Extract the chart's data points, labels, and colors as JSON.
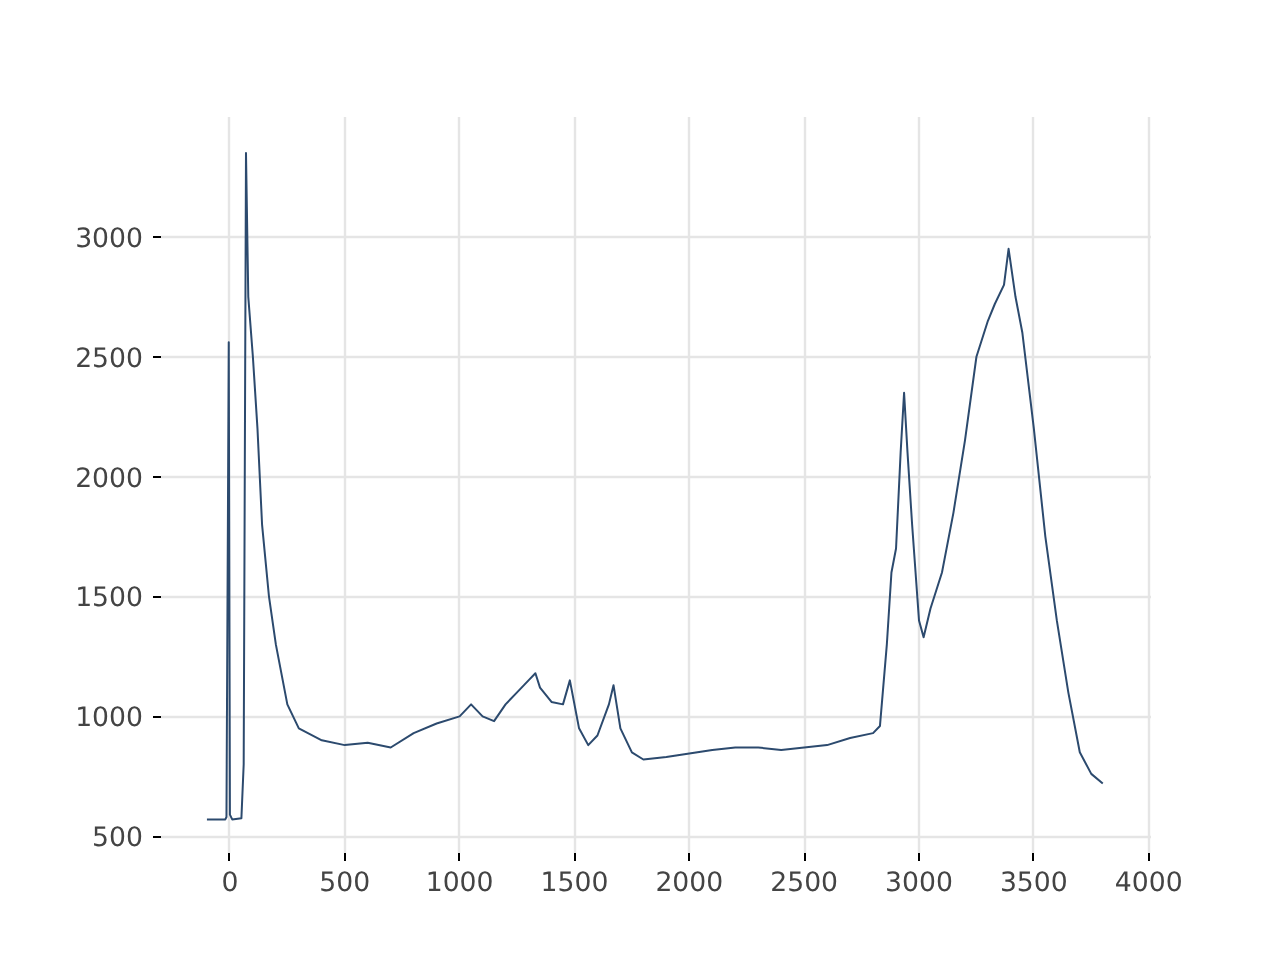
{
  "chart_data": {
    "type": "line",
    "x": [
      -100,
      -20,
      -15,
      -5,
      0,
      10,
      50,
      60,
      70,
      80,
      100,
      120,
      140,
      150,
      170,
      200,
      250,
      300,
      400,
      500,
      600,
      700,
      800,
      900,
      1000,
      1050,
      1100,
      1150,
      1200,
      1250,
      1300,
      1330,
      1350,
      1400,
      1450,
      1480,
      1520,
      1560,
      1600,
      1650,
      1670,
      1700,
      1750,
      1800,
      1900,
      2000,
      2100,
      2200,
      2300,
      2400,
      2500,
      2600,
      2700,
      2800,
      2830,
      2860,
      2880,
      2900,
      2920,
      2935,
      2950,
      2970,
      3000,
      3020,
      3050,
      3100,
      3150,
      3200,
      3250,
      3300,
      3330,
      3370,
      3390,
      3420,
      3450,
      3500,
      3550,
      3600,
      3650,
      3700,
      3750,
      3800
    ],
    "series": [
      {
        "color": "#2c4a6e",
        "values": [
          570,
          570,
          580,
          2560,
          590,
          570,
          575,
          800,
          3350,
          2750,
          2500,
          2200,
          1800,
          1700,
          1500,
          1300,
          1050,
          950,
          900,
          880,
          890,
          870,
          930,
          970,
          1000,
          1050,
          1000,
          980,
          1050,
          1100,
          1150,
          1180,
          1120,
          1060,
          1050,
          1150,
          950,
          880,
          920,
          1050,
          1130,
          950,
          850,
          820,
          830,
          845,
          860,
          870,
          870,
          860,
          870,
          880,
          910,
          930,
          960,
          1300,
          1600,
          1700,
          2100,
          2350,
          2100,
          1800,
          1400,
          1330,
          1450,
          1600,
          1850,
          2150,
          2500,
          2650,
          2720,
          2800,
          2950,
          2750,
          2600,
          2200,
          1750,
          1400,
          1100,
          850,
          760,
          720
        ]
      }
    ],
    "xlim": [
      -300,
      4010
    ],
    "ylim": [
      430,
      3500
    ],
    "xticks": [
      0,
      500,
      1000,
      1500,
      2000,
      2500,
      3000,
      3500,
      4000
    ],
    "yticks": [
      500,
      1000,
      1500,
      2000,
      2500,
      3000
    ],
    "grid": true,
    "line_style": "solid"
  }
}
